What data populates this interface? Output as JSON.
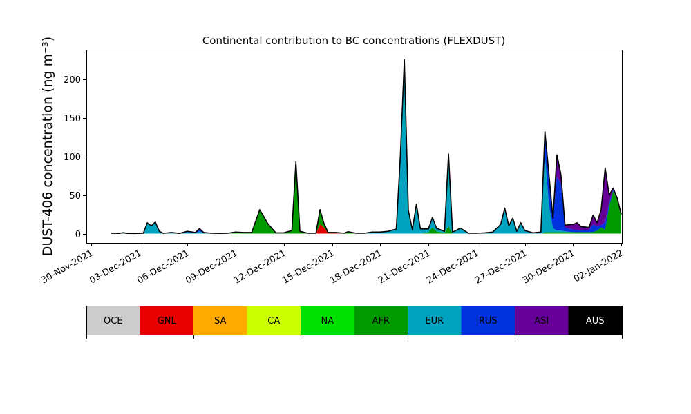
{
  "chart_data": {
    "type": "area",
    "stacked": true,
    "title": "Continental contribution to BC concentrations (FLEXDUST)",
    "ylabel": "DUST-406 concentration (ng m⁻³)",
    "xlabel": "",
    "x_range": [
      "2021-11-29T17:00",
      "2022-01-02T01:00"
    ],
    "ylim": [
      -12,
      238
    ],
    "y_ticks": [
      0,
      50,
      100,
      150,
      200
    ],
    "x_ticks": [
      {
        "date": "2021-11-30",
        "label": "30-Nov-2021"
      },
      {
        "date": "2021-12-03",
        "label": "03-Dec-2021"
      },
      {
        "date": "2021-12-06",
        "label": "06-Dec-2021"
      },
      {
        "date": "2021-12-09",
        "label": "09-Dec-2021"
      },
      {
        "date": "2021-12-12",
        "label": "12-Dec-2021"
      },
      {
        "date": "2021-12-15",
        "label": "15-Dec-2021"
      },
      {
        "date": "2021-12-18",
        "label": "18-Dec-2021"
      },
      {
        "date": "2021-12-21",
        "label": "21-Dec-2021"
      },
      {
        "date": "2021-12-24",
        "label": "24-Dec-2021"
      },
      {
        "date": "2021-12-27",
        "label": "27-Dec-2021"
      },
      {
        "date": "2021-12-30",
        "label": "30-Dec-2021"
      },
      {
        "date": "2022-01-02",
        "label": "02-Jan-2022"
      }
    ],
    "grid": false,
    "legend_placement": "below",
    "legend": [
      {
        "name": "OCE",
        "color": "#cccccc",
        "text_color": "#000000"
      },
      {
        "name": "GNL",
        "color": "#e60000",
        "text_color": "#000000"
      },
      {
        "name": "SA",
        "color": "#ffaa00",
        "text_color": "#000000"
      },
      {
        "name": "CA",
        "color": "#ccff00",
        "text_color": "#000000"
      },
      {
        "name": "NA",
        "color": "#00e000",
        "text_color": "#000000"
      },
      {
        "name": "AFR",
        "color": "#009900",
        "text_color": "#000000"
      },
      {
        "name": "EUR",
        "color": "#00a3bf",
        "text_color": "#000000"
      },
      {
        "name": "RUS",
        "color": "#0033dd",
        "text_color": "#000000"
      },
      {
        "name": "ASI",
        "color": "#660099",
        "text_color": "#000000"
      },
      {
        "name": "AUS",
        "color": "#000000",
        "text_color": "#ffffff"
      }
    ],
    "series_order": [
      "OCE",
      "GNL",
      "SA",
      "CA",
      "NA",
      "AFR",
      "EUR",
      "RUS",
      "ASI"
    ],
    "total_line": {
      "name": "AUS",
      "color": "#000000"
    },
    "points": [
      {
        "t": "2021-12-01T06:00",
        "v": {
          "EUR": 0.6
        }
      },
      {
        "t": "2021-12-01T18:00",
        "v": {
          "EUR": 0.3
        }
      },
      {
        "t": "2021-12-02T00:00",
        "v": {
          "EUR": 1.2
        }
      },
      {
        "t": "2021-12-02T06:00",
        "v": {
          "EUR": 0.3
        }
      },
      {
        "t": "2021-12-02T18:00",
        "v": {
          "EUR": 0.2
        }
      },
      {
        "t": "2021-12-03T06:00",
        "v": {
          "EUR": 0.5
        }
      },
      {
        "t": "2021-12-03T12:00",
        "v": {
          "EUR": 14
        }
      },
      {
        "t": "2021-12-03T18:00",
        "v": {
          "EUR": 10
        }
      },
      {
        "t": "2021-12-04T00:00",
        "v": {
          "EUR": 15
        }
      },
      {
        "t": "2021-12-04T06:00",
        "v": {
          "EUR": 3
        }
      },
      {
        "t": "2021-12-04T12:00",
        "v": {
          "EUR": 0.4
        }
      },
      {
        "t": "2021-12-05T00:00",
        "v": {
          "EUR": 1.5
        }
      },
      {
        "t": "2021-12-05T12:00",
        "v": {
          "EUR": 0.3
        }
      },
      {
        "t": "2021-12-06T00:00",
        "v": {
          "EUR": 2,
          "RUS": 1
        }
      },
      {
        "t": "2021-12-06T12:00",
        "v": {
          "EUR": 1,
          "RUS": 0.5
        }
      },
      {
        "t": "2021-12-06T18:00",
        "v": {
          "EUR": 3,
          "RUS": 2,
          "ASI": 1.5
        }
      },
      {
        "t": "2021-12-07T00:00",
        "v": {
          "EUR": 1,
          "RUS": 0.5
        }
      },
      {
        "t": "2021-12-07T12:00",
        "v": {
          "EUR": 0.5
        }
      },
      {
        "t": "2021-12-08T00:00",
        "v": {
          "EUR": 0.3
        }
      },
      {
        "t": "2021-12-08T12:00",
        "v": {
          "EUR": 0.5
        }
      },
      {
        "t": "2021-12-09T00:00",
        "v": {
          "NA": 0.5,
          "AFR": 1.5
        }
      },
      {
        "t": "2021-12-09T12:00",
        "v": {
          "AFR": 1.5
        }
      },
      {
        "t": "2021-12-10T00:00",
        "v": {
          "AFR": 1.5
        }
      },
      {
        "t": "2021-12-10T12:00",
        "v": {
          "AFR": 31
        }
      },
      {
        "t": "2021-12-11T00:00",
        "v": {
          "AFR": 13
        }
      },
      {
        "t": "2021-12-11T12:00",
        "v": {
          "AFR": 1
        }
      },
      {
        "t": "2021-12-12T00:00",
        "v": {
          "AFR": 1
        }
      },
      {
        "t": "2021-12-12T12:00",
        "v": {
          "AFR": 4
        }
      },
      {
        "t": "2021-12-12T18:00",
        "v": {
          "AFR": 93
        }
      },
      {
        "t": "2021-12-13T00:00",
        "v": {
          "AFR": 3
        }
      },
      {
        "t": "2021-12-13T12:00",
        "v": {
          "AFR": 0.5
        }
      },
      {
        "t": "2021-12-14T00:00",
        "v": {
          "AFR": 0.5
        }
      },
      {
        "t": "2021-12-14T06:00",
        "v": {
          "GNL": 12,
          "AFR": 19
        }
      },
      {
        "t": "2021-12-14T12:00",
        "v": {
          "GNL": 8,
          "AFR": 5
        }
      },
      {
        "t": "2021-12-14T18:00",
        "v": {
          "GNL": 1,
          "AFR": 0.5
        }
      },
      {
        "t": "2021-12-15T06:00",
        "v": {
          "GNL": 1,
          "SA": 0.5
        }
      },
      {
        "t": "2021-12-15T18:00",
        "v": {
          "AFR": 0.5
        }
      },
      {
        "t": "2021-12-16T00:00",
        "v": {
          "AFR": 2.5
        }
      },
      {
        "t": "2021-12-16T12:00",
        "v": {
          "AFR": 0.5
        }
      },
      {
        "t": "2021-12-17T00:00",
        "v": {
          "EUR": 0.5
        }
      },
      {
        "t": "2021-12-17T12:00",
        "v": {
          "EUR": 2
        }
      },
      {
        "t": "2021-12-18T00:00",
        "v": {
          "EUR": 2
        }
      },
      {
        "t": "2021-12-18T12:00",
        "v": {
          "EUR": 3
        }
      },
      {
        "t": "2021-12-19T00:00",
        "v": {
          "EUR": 6
        }
      },
      {
        "t": "2021-12-19T06:00",
        "v": {
          "EUR": 100
        }
      },
      {
        "t": "2021-12-19T12:00",
        "v": {
          "EUR": 225
        }
      },
      {
        "t": "2021-12-19T18:00",
        "v": {
          "EUR": 30
        }
      },
      {
        "t": "2021-12-20T00:00",
        "v": {
          "EUR": 5
        }
      },
      {
        "t": "2021-12-20T06:00",
        "v": {
          "EUR": 38
        }
      },
      {
        "t": "2021-12-20T12:00",
        "v": {
          "EUR": 6
        }
      },
      {
        "t": "2021-12-21T00:00",
        "v": {
          "AFR": 2,
          "EUR": 4
        }
      },
      {
        "t": "2021-12-21T06:00",
        "v": {
          "AFR": 8,
          "EUR": 13
        }
      },
      {
        "t": "2021-12-21T12:00",
        "v": {
          "AFR": 3,
          "EUR": 4
        }
      },
      {
        "t": "2021-12-22T00:00",
        "v": {
          "AFR": 1,
          "EUR": 2
        }
      },
      {
        "t": "2021-12-22T06:00",
        "v": {
          "AFR": 10,
          "EUR": 93
        }
      },
      {
        "t": "2021-12-22T12:00",
        "v": {
          "EUR": 2
        }
      },
      {
        "t": "2021-12-23T00:00",
        "v": {
          "EUR": 7
        }
      },
      {
        "t": "2021-12-23T12:00",
        "v": {
          "EUR": 0.5
        }
      },
      {
        "t": "2021-12-24T00:00",
        "v": {
          "EUR": 0.5
        }
      },
      {
        "t": "2021-12-24T12:00",
        "v": {
          "EUR": 1
        }
      },
      {
        "t": "2021-12-25T00:00",
        "v": {
          "EUR": 2
        }
      },
      {
        "t": "2021-12-25T12:00",
        "v": {
          "EUR": 12
        }
      },
      {
        "t": "2021-12-25T18:00",
        "v": {
          "EUR": 33
        }
      },
      {
        "t": "2021-12-26T00:00",
        "v": {
          "EUR": 10
        }
      },
      {
        "t": "2021-12-26T06:00",
        "v": {
          "EUR": 20
        }
      },
      {
        "t": "2021-12-26T12:00",
        "v": {
          "EUR": 3
        }
      },
      {
        "t": "2021-12-26T18:00",
        "v": {
          "EUR": 14
        }
      },
      {
        "t": "2021-12-27T00:00",
        "v": {
          "EUR": 4
        }
      },
      {
        "t": "2021-12-27T12:00",
        "v": {
          "EUR": 1
        }
      },
      {
        "t": "2021-12-28T00:00",
        "v": {
          "EUR": 2
        }
      },
      {
        "t": "2021-12-28T06:00",
        "v": {
          "AFR": 2,
          "EUR": 100,
          "RUS": 30
        }
      },
      {
        "t": "2021-12-28T12:00",
        "v": {
          "AFR": 2,
          "EUR": 35,
          "RUS": 35,
          "ASI": 5
        }
      },
      {
        "t": "2021-12-28T18:00",
        "v": {
          "AFR": 2,
          "EUR": 5,
          "RUS": 10,
          "ASI": 3
        }
      },
      {
        "t": "2021-12-29T00:00",
        "v": {
          "AFR": 2,
          "EUR": 2,
          "RUS": 70,
          "ASI": 28
        }
      },
      {
        "t": "2021-12-29T06:00",
        "v": {
          "AFR": 2,
          "EUR": 2,
          "RUS": 60,
          "ASI": 12
        }
      },
      {
        "t": "2021-12-29T12:00",
        "v": {
          "AFR": 2,
          "EUR": 1,
          "RUS": 5,
          "ASI": 3
        }
      },
      {
        "t": "2021-12-30T00:00",
        "v": {
          "AFR": 2,
          "RUS": 3,
          "ASI": 7
        }
      },
      {
        "t": "2021-12-30T06:00",
        "v": {
          "AFR": 2,
          "RUS": 3,
          "ASI": 9
        }
      },
      {
        "t": "2021-12-30T12:00",
        "v": {
          "AFR": 2,
          "RUS": 2,
          "ASI": 5
        }
      },
      {
        "t": "2021-12-31T00:00",
        "v": {
          "AFR": 2,
          "RUS": 3,
          "ASI": 3
        }
      },
      {
        "t": "2021-12-31T06:00",
        "v": {
          "AFR": 2,
          "RUS": 10,
          "ASI": 12
        }
      },
      {
        "t": "2021-12-31T12:00",
        "v": {
          "AFR": 4,
          "RUS": 5,
          "ASI": 5
        }
      },
      {
        "t": "2021-12-31T18:00",
        "v": {
          "AFR": 8,
          "RUS": 3,
          "ASI": 20
        }
      },
      {
        "t": "2022-01-01T00:00",
        "v": {
          "AFR": 5,
          "RUS": 10,
          "ASI": 70
        }
      },
      {
        "t": "2022-01-01T06:00",
        "v": {
          "AFR": 35,
          "RUS": 5,
          "ASI": 10
        }
      },
      {
        "t": "2022-01-01T12:00",
        "v": {
          "AFR": 55,
          "RUS": 2,
          "ASI": 2
        }
      },
      {
        "t": "2022-01-01T18:00",
        "v": {
          "AFR": 45,
          "RUS": 1
        }
      },
      {
        "t": "2022-01-02T00:00",
        "v": {
          "AFR": 25
        }
      }
    ]
  }
}
